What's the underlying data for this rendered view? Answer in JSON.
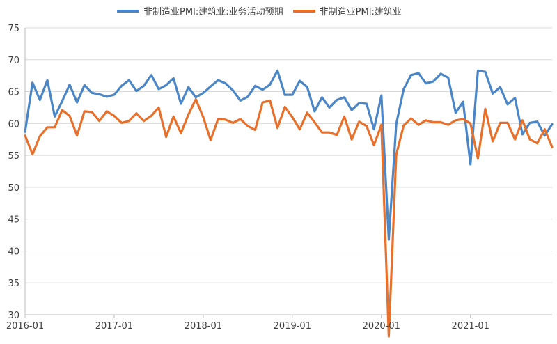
{
  "chart_data": {
    "type": "line",
    "title": "",
    "xlabel": "",
    "ylabel": "",
    "ylim": [
      30,
      75
    ],
    "yticks": [
      30,
      35,
      40,
      45,
      50,
      55,
      60,
      65,
      70,
      75
    ],
    "grid": "horizontal",
    "legend_position": "top",
    "x_tick_labels": [
      "2016-01",
      "2017-01",
      "2018-01",
      "2019-01",
      "2020-01",
      "2021-01"
    ],
    "x": [
      "2016-01",
      "2016-02",
      "2016-03",
      "2016-04",
      "2016-05",
      "2016-06",
      "2016-07",
      "2016-08",
      "2016-09",
      "2016-10",
      "2016-11",
      "2016-12",
      "2017-01",
      "2017-02",
      "2017-03",
      "2017-04",
      "2017-05",
      "2017-06",
      "2017-07",
      "2017-08",
      "2017-09",
      "2017-10",
      "2017-11",
      "2017-12",
      "2018-01",
      "2018-02",
      "2018-03",
      "2018-04",
      "2018-05",
      "2018-06",
      "2018-07",
      "2018-08",
      "2018-09",
      "2018-10",
      "2018-11",
      "2018-12",
      "2019-01",
      "2019-02",
      "2019-03",
      "2019-04",
      "2019-05",
      "2019-06",
      "2019-07",
      "2019-08",
      "2019-09",
      "2019-10",
      "2019-11",
      "2019-12",
      "2020-01",
      "2020-02",
      "2020-03",
      "2020-04",
      "2020-05",
      "2020-06",
      "2020-07",
      "2020-08",
      "2020-09",
      "2020-10",
      "2020-11",
      "2020-12",
      "2021-01",
      "2021-02",
      "2021-03",
      "2021-04",
      "2021-05",
      "2021-06",
      "2021-07",
      "2021-08",
      "2021-09",
      "2021-10",
      "2021-11",
      "2021-12"
    ],
    "series": [
      {
        "name": "非制造业PMI:建筑业:业务活动预期",
        "color": "#4A86C8",
        "values": [
          58.7,
          66.4,
          63.7,
          66.8,
          61.1,
          63.5,
          66.1,
          63.3,
          66.0,
          64.8,
          64.6,
          64.2,
          64.5,
          65.9,
          66.8,
          65.1,
          65.9,
          67.6,
          65.4,
          66.0,
          67.1,
          63.1,
          65.7,
          64.1,
          64.8,
          65.8,
          66.8,
          66.3,
          65.2,
          63.6,
          64.2,
          65.9,
          65.3,
          66.1,
          68.3,
          64.5,
          64.5,
          66.7,
          65.7,
          61.9,
          64.1,
          62.5,
          63.7,
          64.1,
          62.1,
          63.2,
          63.1,
          59.1,
          64.4,
          41.8,
          59.9,
          65.4,
          67.6,
          67.9,
          66.3,
          66.6,
          67.8,
          67.2,
          61.7,
          63.4,
          53.6,
          68.3,
          68.1,
          64.7,
          65.7,
          63.0,
          64.0,
          58.3,
          60.1,
          60.3,
          58.1,
          59.9
        ]
      },
      {
        "name": "非制造业PMI:建筑业",
        "color": "#E8702A",
        "values": [
          58.1,
          55.2,
          58.0,
          59.4,
          59.4,
          62.1,
          61.2,
          58.1,
          61.9,
          61.8,
          60.4,
          61.9,
          61.2,
          60.1,
          60.4,
          61.6,
          60.4,
          61.2,
          62.5,
          57.9,
          61.1,
          58.5,
          61.4,
          63.8,
          61.0,
          57.4,
          60.7,
          60.6,
          60.1,
          60.7,
          59.6,
          59.0,
          63.3,
          63.6,
          59.3,
          62.6,
          61.0,
          59.1,
          61.7,
          60.2,
          58.6,
          58.6,
          58.2,
          61.1,
          57.5,
          60.3,
          59.6,
          56.6,
          59.8,
          26.6,
          55.1,
          59.7,
          60.8,
          59.8,
          60.5,
          60.2,
          60.2,
          59.8,
          60.5,
          60.7,
          60.0,
          54.5,
          62.3,
          57.2,
          60.1,
          60.1,
          57.5,
          60.5,
          57.5,
          56.9,
          59.1,
          56.3
        ]
      }
    ]
  }
}
